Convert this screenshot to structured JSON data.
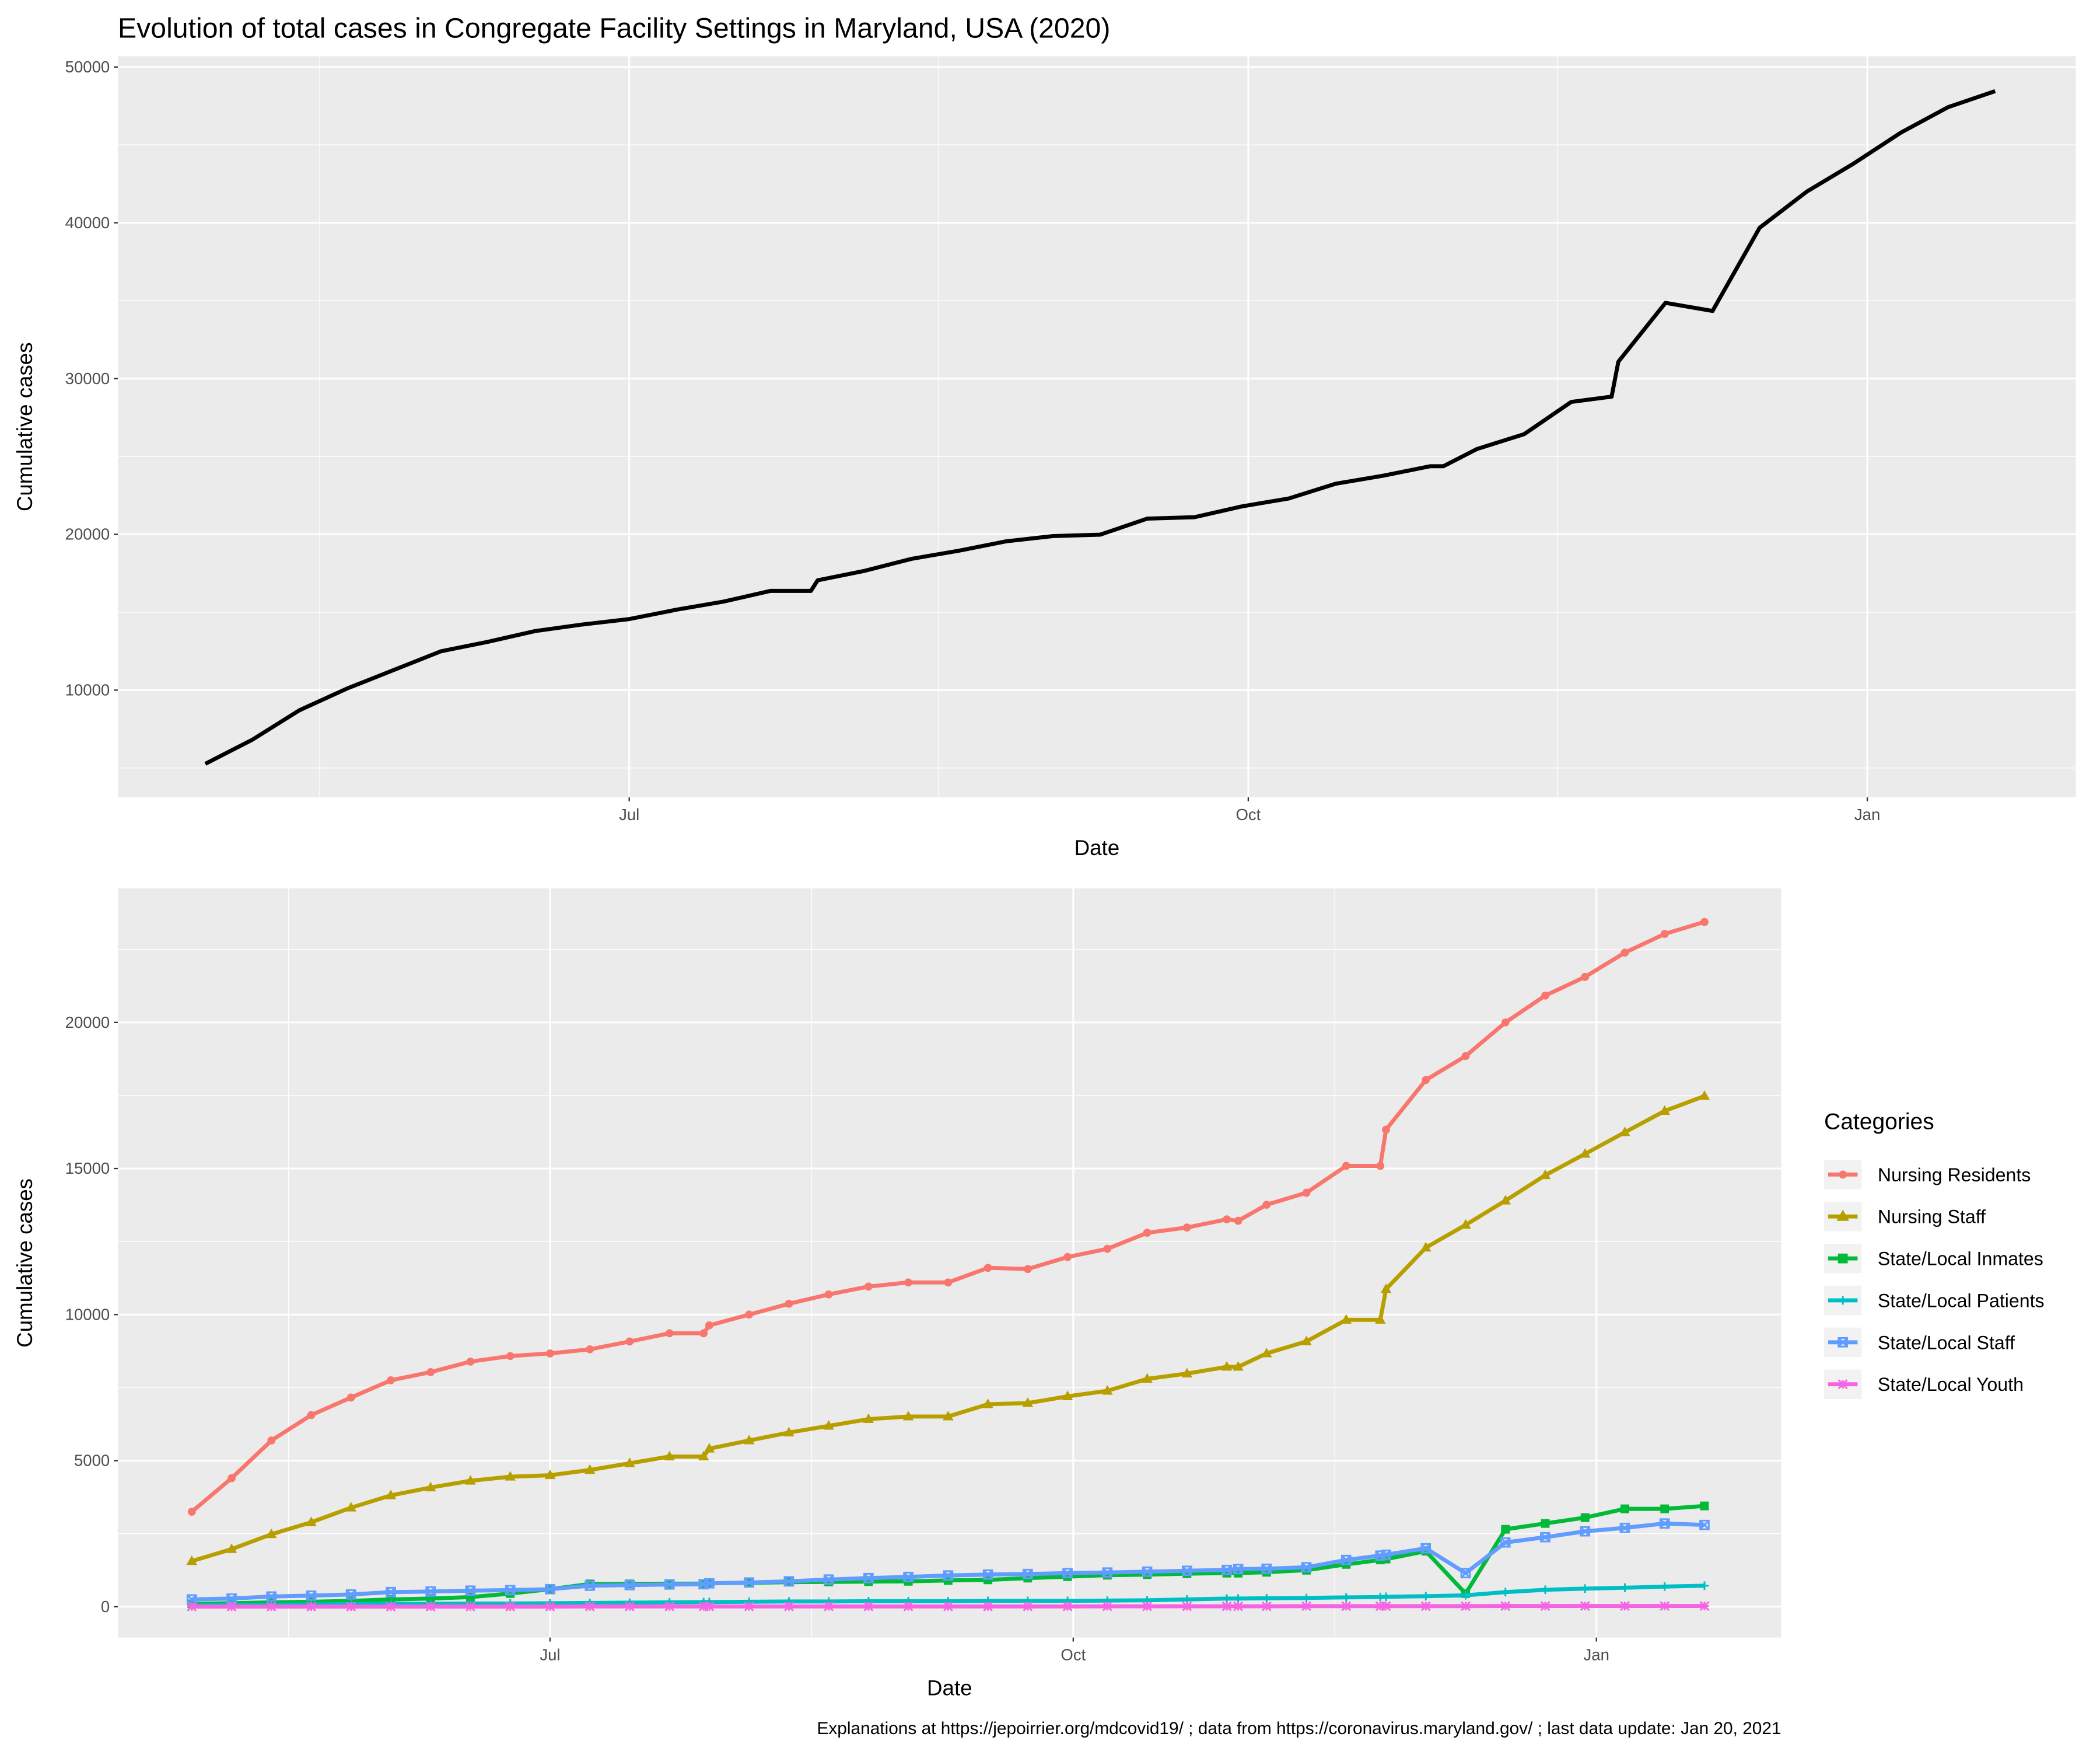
{
  "chart_data": [
    {
      "type": "line",
      "title": "Evolution of total cases in Congregate Facility Settings in Maryland, USA (2020)",
      "xlabel": "Date",
      "ylabel": "Cumulative cases",
      "x": [
        119,
        126,
        133,
        140,
        147,
        154,
        161,
        168,
        175,
        182,
        189,
        196,
        203,
        209,
        210,
        217,
        224,
        231,
        238,
        245,
        252,
        259,
        266,
        273,
        280,
        287,
        294,
        301,
        303,
        308,
        315,
        322,
        328,
        329,
        336,
        343,
        350,
        357,
        364,
        371,
        378,
        385
      ],
      "values": [
        5270,
        6820,
        8710,
        10090,
        11290,
        12490,
        13100,
        13790,
        14210,
        14560,
        15160,
        15680,
        16370,
        16370,
        17050,
        17660,
        18430,
        18950,
        19550,
        19890,
        19980,
        21010,
        21100,
        21790,
        22300,
        23250,
        23760,
        24370,
        24370,
        25480,
        26430,
        28500,
        28840,
        31080,
        34860,
        34340,
        39680,
        42000,
        43810,
        45790,
        47420,
        48450
      ],
      "color": "#000000",
      "xlim": [
        106,
        397
      ],
      "ylim": [
        3118,
        50688
      ],
      "xticks": [
        {
          "value": 182,
          "label": "Jul"
        },
        {
          "value": 274,
          "label": "Oct"
        },
        {
          "value": 366,
          "label": "Jan"
        }
      ],
      "xminorticks": [
        136,
        228,
        320
      ],
      "yticks": [
        10000,
        20000,
        30000,
        40000,
        50000
      ],
      "yminorticks": [
        5000,
        15000,
        25000,
        35000,
        45000
      ],
      "grid": true
    },
    {
      "type": "line",
      "xlabel": "Date",
      "ylabel": "Cumulative cases",
      "x": [
        119,
        126,
        133,
        140,
        147,
        154,
        161,
        168,
        175,
        182,
        189,
        196,
        203,
        209,
        210,
        217,
        224,
        231,
        238,
        245,
        252,
        259,
        266,
        273,
        280,
        287,
        294,
        301,
        303,
        308,
        315,
        322,
        328,
        329,
        336,
        343,
        350,
        357,
        364,
        371,
        378,
        385
      ],
      "series": [
        {
          "name": "Nursing Residents",
          "color": "#F8766D",
          "marker": "circle",
          "values": [
            3250,
            4400,
            5690,
            6560,
            7160,
            7750,
            8030,
            8390,
            8580,
            8670,
            8810,
            9080,
            9360,
            9360,
            9630,
            10000,
            10370,
            10690,
            10960,
            11100,
            11100,
            11600,
            11560,
            11970,
            12250,
            12800,
            12980,
            13260,
            13210,
            13760,
            14170,
            15090,
            15090,
            16330,
            18030,
            18850,
            20000,
            20920,
            21560,
            22390,
            23030,
            23440
          ]
        },
        {
          "name": "Nursing Staff",
          "color": "#B79F00",
          "marker": "triangle",
          "values": [
            1560,
            1970,
            2480,
            2890,
            3390,
            3810,
            4080,
            4310,
            4450,
            4500,
            4680,
            4910,
            5140,
            5140,
            5410,
            5690,
            5960,
            6190,
            6420,
            6510,
            6510,
            6930,
            6970,
            7200,
            7390,
            7800,
            7980,
            8210,
            8210,
            8670,
            9080,
            9820,
            9820,
            10870,
            12290,
            13070,
            13900,
            14770,
            15500,
            16240,
            16970,
            17480
          ]
        },
        {
          "name": "State/Local Inmates",
          "color": "#00BA38",
          "marker": "square",
          "values": [
            100,
            120,
            150,
            170,
            200,
            250,
            280,
            330,
            450,
            600,
            780,
            780,
            790,
            790,
            800,
            820,
            840,
            850,
            860,
            870,
            900,
            920,
            980,
            1030,
            1080,
            1100,
            1130,
            1150,
            1150,
            1180,
            1250,
            1450,
            1600,
            1630,
            1900,
            450,
            2650,
            2850,
            3050,
            3350,
            3350,
            3450
          ]
        },
        {
          "name": "State/Local Patients",
          "color": "#00BFC4",
          "marker": "plus",
          "values": [
            50,
            60,
            70,
            80,
            90,
            100,
            100,
            110,
            110,
            120,
            130,
            140,
            150,
            160,
            160,
            170,
            180,
            180,
            190,
            190,
            190,
            200,
            200,
            200,
            210,
            220,
            250,
            280,
            280,
            290,
            300,
            320,
            330,
            340,
            360,
            390,
            500,
            580,
            620,
            650,
            690,
            720
          ]
        },
        {
          "name": "State/Local Staff",
          "color": "#619CFF",
          "marker": "square-x",
          "values": [
            250,
            280,
            350,
            380,
            420,
            500,
            520,
            550,
            570,
            600,
            720,
            740,
            760,
            770,
            800,
            830,
            870,
            930,
            980,
            1020,
            1070,
            1100,
            1120,
            1150,
            1170,
            1200,
            1230,
            1260,
            1290,
            1300,
            1350,
            1600,
            1750,
            1780,
            2000,
            1150,
            2200,
            2380,
            2580,
            2700,
            2850,
            2800
          ]
        },
        {
          "name": "State/Local Youth",
          "color": "#F564E3",
          "marker": "asterisk",
          "values": [
            5,
            5,
            5,
            5,
            5,
            5,
            5,
            5,
            5,
            5,
            10,
            10,
            10,
            10,
            10,
            10,
            10,
            10,
            10,
            10,
            10,
            10,
            10,
            10,
            15,
            15,
            15,
            15,
            15,
            15,
            20,
            20,
            20,
            20,
            20,
            20,
            25,
            25,
            25,
            25,
            25,
            25
          ]
        }
      ],
      "legend": "right",
      "legend_title": "Categories",
      "xlim": [
        106,
        398.5
      ],
      "ylim": [
        -1055,
        24587
      ],
      "xticks": [
        {
          "value": 182,
          "label": "Jul"
        },
        {
          "value": 274,
          "label": "Oct"
        },
        {
          "value": 366,
          "label": "Jan"
        }
      ],
      "xminorticks": [
        136,
        228,
        320
      ],
      "yticks": [
        0,
        5000,
        10000,
        15000,
        20000
      ],
      "yminorticks": [
        2500,
        7500,
        12500,
        17500,
        22500
      ],
      "grid": true
    }
  ],
  "caption": "Explanations at https://jepoirrier.org/mdcovid19/ ; data from https://coronavirus.maryland.gov/ ; last data update: Jan 20, 2021"
}
